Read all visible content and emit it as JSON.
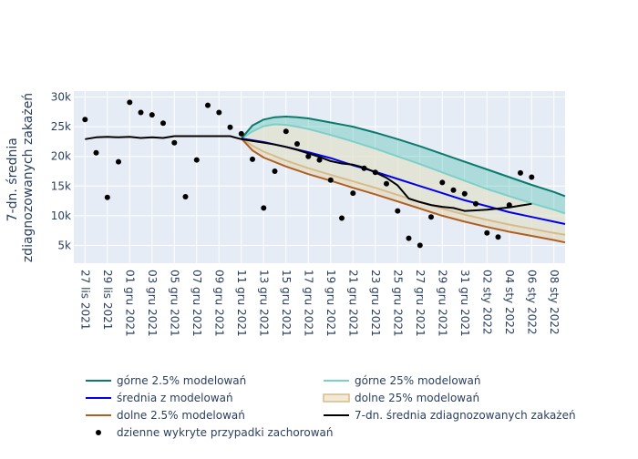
{
  "chart_data": {
    "type": "line",
    "ylabel_lines": [
      "7-dn. średnia",
      "zdiagnozowanych zakażeń"
    ],
    "y_ticks": [
      5000,
      10000,
      15000,
      20000,
      25000,
      30000
    ],
    "y_tick_labels": [
      "5k",
      "10k",
      "15k",
      "20k",
      "25k",
      "30k"
    ],
    "ylim": [
      2000,
      31000
    ],
    "xlim": [
      "2021-11-26",
      "2022-01-09"
    ],
    "x_ticks": [
      "2021-11-27",
      "2021-11-29",
      "2021-12-01",
      "2021-12-03",
      "2021-12-05",
      "2021-12-07",
      "2021-12-09",
      "2021-12-11",
      "2021-12-13",
      "2021-12-15",
      "2021-12-17",
      "2021-12-19",
      "2021-12-21",
      "2021-12-23",
      "2021-12-25",
      "2021-12-27",
      "2021-12-29",
      "2021-12-31",
      "2022-01-02",
      "2022-01-04",
      "2022-01-06",
      "2022-01-08"
    ],
    "x_tick_labels": [
      "27 lis 2021",
      "29 lis 2021",
      "01 gru 2021",
      "03 gru 2021",
      "05 gru 2021",
      "07 gru 2021",
      "09 gru 2021",
      "11 gru 2021",
      "13 gru 2021",
      "15 gru 2021",
      "17 gru 2021",
      "19 gru 2021",
      "21 gru 2021",
      "23 gru 2021",
      "25 gru 2021",
      "27 gru 2021",
      "29 gru 2021",
      "31 gru 2021",
      "02 sty 2022",
      "04 sty 2022",
      "06 sty 2022",
      "08 sty 2022"
    ],
    "grid": true,
    "legend_position": "bottom",
    "colors": {
      "upper_2_5": "#0b7a6b",
      "upper_25": "#7dd0c8",
      "mean": "#0000ee",
      "lower_25": "#d8bb8a",
      "lower_2_5": "#b05f1f",
      "avg7": "#000000",
      "daily": "#000000",
      "outer_upper_fill": "rgba(70,190,170,0.35)",
      "inner_fill": "rgba(225,225,205,0.75)",
      "outer_lower_fill": "rgba(225,210,165,0.45)",
      "plot_bg": "#e5ecf6"
    },
    "series": [
      {
        "name": "górne 2.5% modelowań",
        "key": "upper_2_5",
        "x": [
          "2021-12-11",
          "2021-12-12",
          "2021-12-13",
          "2021-12-14",
          "2021-12-15",
          "2021-12-16",
          "2021-12-17",
          "2021-12-19",
          "2021-12-21",
          "2021-12-23",
          "2021-12-25",
          "2021-12-27",
          "2021-12-29",
          "2021-12-31",
          "2022-01-02",
          "2022-01-04",
          "2022-01-06",
          "2022-01-08",
          "2022-01-09"
        ],
        "y": [
          23000,
          25200,
          26200,
          26600,
          26700,
          26600,
          26400,
          25700,
          25000,
          24000,
          22900,
          21700,
          20400,
          19100,
          17800,
          16500,
          15200,
          14000,
          13300
        ]
      },
      {
        "name": "górne 25% modelowań",
        "key": "upper_25",
        "x": [
          "2021-12-11",
          "2021-12-12",
          "2021-12-13",
          "2021-12-14",
          "2021-12-15",
          "2021-12-16",
          "2021-12-17",
          "2021-12-19",
          "2021-12-21",
          "2021-12-23",
          "2021-12-25",
          "2021-12-27",
          "2021-12-29",
          "2021-12-31",
          "2022-01-02",
          "2022-01-04",
          "2022-01-06",
          "2022-01-08",
          "2022-01-09"
        ],
        "y": [
          23000,
          24200,
          25100,
          25400,
          25300,
          25000,
          24600,
          23600,
          22500,
          21300,
          20000,
          18700,
          17300,
          15900,
          14500,
          13300,
          12100,
          11000,
          10400
        ]
      },
      {
        "name": "średnia z modelowań",
        "key": "mean",
        "x": [
          "2021-12-11",
          "2021-12-13",
          "2021-12-15",
          "2021-12-17",
          "2021-12-19",
          "2021-12-21",
          "2021-12-23",
          "2021-12-25",
          "2021-12-27",
          "2021-12-29",
          "2021-12-31",
          "2022-01-02",
          "2022-01-04",
          "2022-01-06",
          "2022-01-08",
          "2022-01-09"
        ],
        "y": [
          23000,
          22400,
          21600,
          20700,
          19700,
          18500,
          17400,
          16200,
          15000,
          13800,
          12600,
          11600,
          10600,
          9800,
          9000,
          8600
        ]
      },
      {
        "name": "dolne 25% modelowań",
        "key": "lower_25",
        "x": [
          "2021-12-11",
          "2021-12-12",
          "2021-12-13",
          "2021-12-15",
          "2021-12-17",
          "2021-12-19",
          "2021-12-21",
          "2021-12-23",
          "2021-12-25",
          "2021-12-27",
          "2021-12-29",
          "2021-12-31",
          "2022-01-02",
          "2022-01-04",
          "2022-01-06",
          "2022-01-08",
          "2022-01-09"
        ],
        "y": [
          23000,
          21800,
          20800,
          19300,
          18000,
          16900,
          15800,
          14700,
          13500,
          12300,
          11200,
          10200,
          9300,
          8500,
          7800,
          7100,
          6800
        ]
      },
      {
        "name": "dolne 2.5% modelowań",
        "key": "lower_2_5",
        "x": [
          "2021-12-11",
          "2021-12-12",
          "2021-12-13",
          "2021-12-15",
          "2021-12-17",
          "2021-12-19",
          "2021-12-21",
          "2021-12-23",
          "2021-12-25",
          "2021-12-27",
          "2021-12-29",
          "2021-12-31",
          "2022-01-02",
          "2022-01-04",
          "2022-01-06",
          "2022-01-08",
          "2022-01-09"
        ],
        "y": [
          23000,
          21000,
          19800,
          18300,
          17000,
          15900,
          14700,
          13600,
          12400,
          11200,
          10000,
          9000,
          8100,
          7300,
          6600,
          5900,
          5500
        ]
      },
      {
        "name": "7-dn. średnia zdiagnozowanych zakażeń",
        "key": "avg7",
        "x": [
          "2021-11-27",
          "2021-11-28",
          "2021-11-29",
          "2021-11-30",
          "2021-12-01",
          "2021-12-02",
          "2021-12-03",
          "2021-12-04",
          "2021-12-05",
          "2021-12-06",
          "2021-12-07",
          "2021-12-08",
          "2021-12-09",
          "2021-12-10",
          "2021-12-11",
          "2021-12-12",
          "2021-12-13",
          "2021-12-14",
          "2021-12-15",
          "2021-12-16",
          "2021-12-17",
          "2021-12-18",
          "2021-12-19",
          "2021-12-20",
          "2021-12-21",
          "2021-12-22",
          "2021-12-23",
          "2021-12-24",
          "2021-12-25",
          "2021-12-26",
          "2021-12-27",
          "2021-12-28",
          "2021-12-29",
          "2021-12-30",
          "2021-12-31",
          "2022-01-01",
          "2022-01-02",
          "2022-01-03",
          "2022-01-04",
          "2022-01-05",
          "2022-01-06"
        ],
        "y": [
          22900,
          23200,
          23300,
          23200,
          23300,
          23100,
          23200,
          23100,
          23400,
          23400,
          23400,
          23400,
          23400,
          23400,
          22900,
          22600,
          22300,
          22000,
          21600,
          21100,
          20500,
          19900,
          19200,
          18800,
          18600,
          18100,
          17300,
          16400,
          15100,
          12900,
          12300,
          11800,
          11500,
          11300,
          10800,
          10900,
          11000,
          11200,
          11400,
          11700,
          12000
        ]
      },
      {
        "name": "dzienne wykryte przypadki zachorowań",
        "key": "daily",
        "mode": "markers",
        "x": [
          "2021-11-27",
          "2021-11-28",
          "2021-11-29",
          "2021-11-30",
          "2021-12-01",
          "2021-12-02",
          "2021-12-03",
          "2021-12-04",
          "2021-12-05",
          "2021-12-06",
          "2021-12-07",
          "2021-12-08",
          "2021-12-09",
          "2021-12-10",
          "2021-12-11",
          "2021-12-12",
          "2021-12-13",
          "2021-12-14",
          "2021-12-15",
          "2021-12-16",
          "2021-12-17",
          "2021-12-18",
          "2021-12-19",
          "2021-12-20",
          "2021-12-21",
          "2021-12-22",
          "2021-12-23",
          "2021-12-24",
          "2021-12-25",
          "2021-12-26",
          "2021-12-27",
          "2021-12-28",
          "2021-12-29",
          "2021-12-30",
          "2021-12-31",
          "2022-01-01",
          "2022-01-02",
          "2022-01-03",
          "2022-01-04",
          "2022-01-05",
          "2022-01-06"
        ],
        "y": [
          26200,
          20600,
          13100,
          19100,
          29100,
          27400,
          27000,
          25600,
          22300,
          13200,
          19400,
          28600,
          27400,
          24900,
          23800,
          19500,
          11300,
          17500,
          24200,
          22100,
          20000,
          19400,
          16000,
          9600,
          13800,
          18000,
          17300,
          15400,
          10800,
          6200,
          5000,
          9800,
          15600,
          14300,
          13700,
          12000,
          7100,
          6400,
          11800,
          17200,
          16500
        ]
      }
    ],
    "legend": [
      {
        "label": "górne 2.5% modelowań",
        "key": "upper_2_5",
        "style": "line"
      },
      {
        "label": "górne 25% modelowań",
        "key": "upper_25",
        "style": "line"
      },
      {
        "label": "średnia z modelowań",
        "key": "mean",
        "style": "line"
      },
      {
        "label": "dolne 25% modelowań",
        "key": "lower_25",
        "style": "band"
      },
      {
        "label": "dolne 2.5% modelowań",
        "key": "lower_2_5",
        "style": "line"
      },
      {
        "label": "7-dn. średnia zdiagnozowanych zakażeń",
        "key": "avg7",
        "style": "line"
      },
      {
        "label": "dzienne wykryte przypadki zachorowań",
        "key": "daily",
        "style": "marker"
      }
    ]
  }
}
